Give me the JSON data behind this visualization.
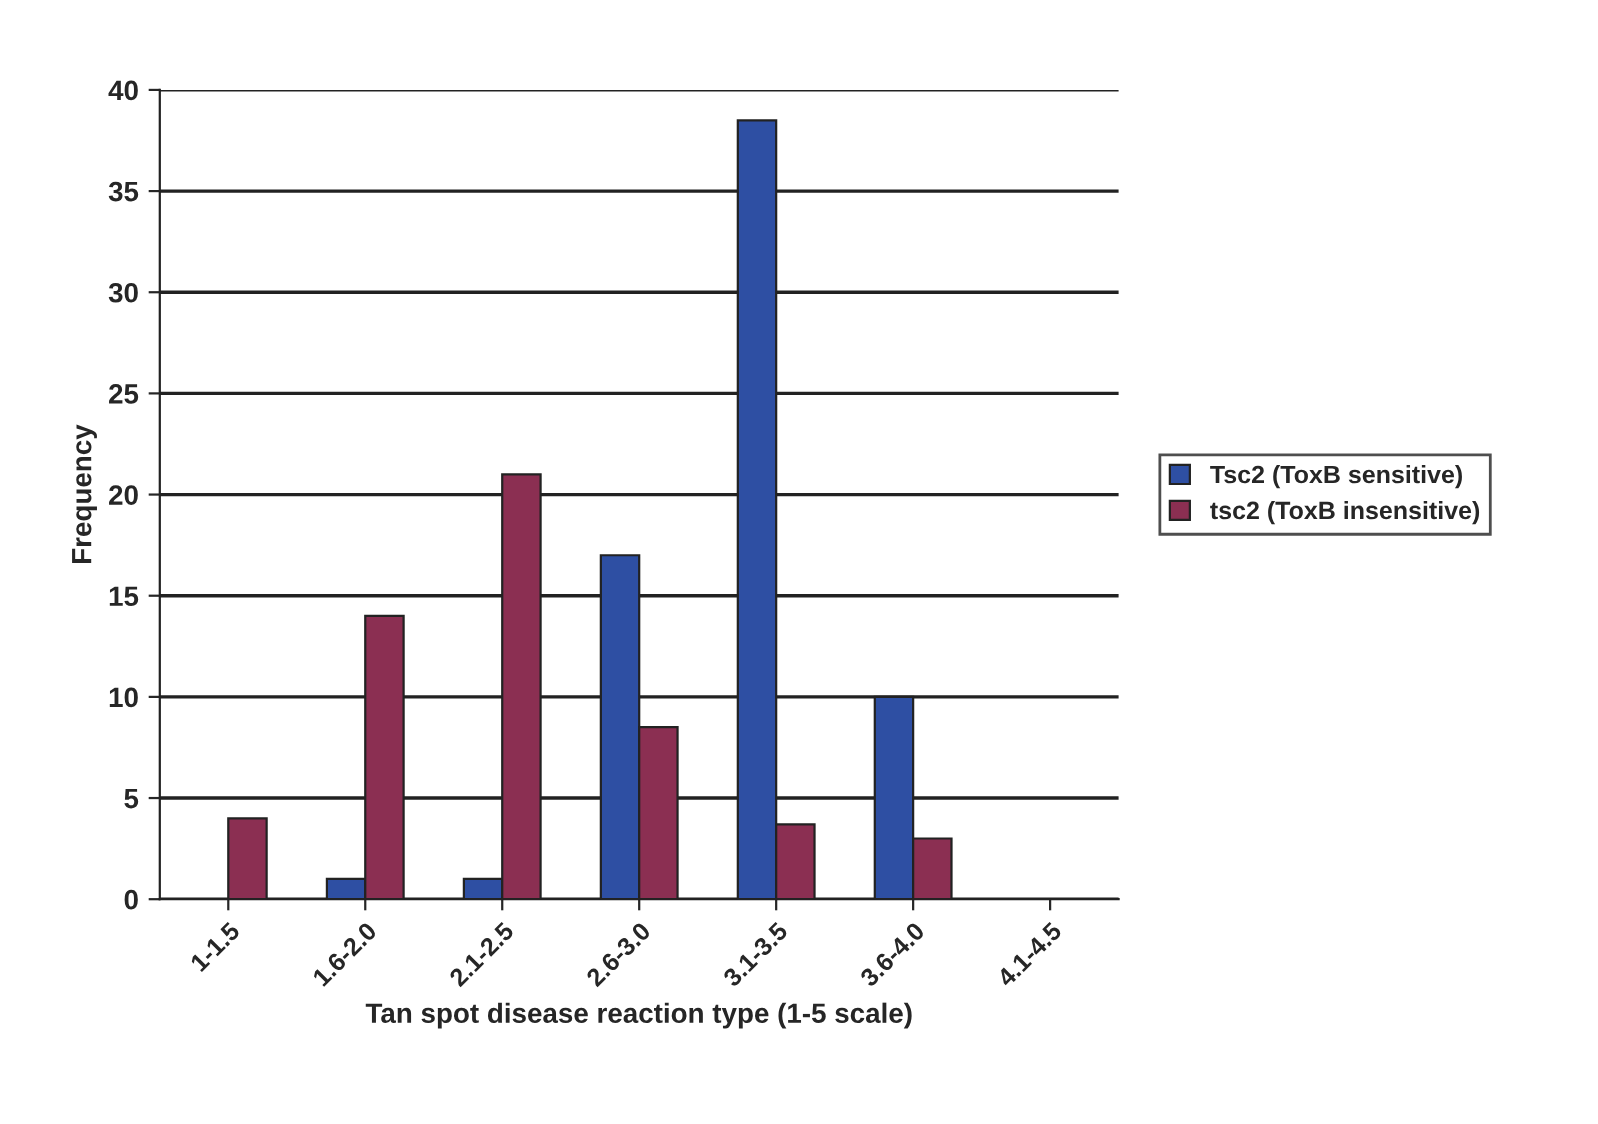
{
  "chart_data": {
    "type": "bar",
    "xlabel": "Tan spot disease reaction type (1-5 scale)",
    "ylabel": "Frequency",
    "categories": [
      "1-1.5",
      "1.6-2.0",
      "2.1-2.5",
      "2.6-3.0",
      "3.1-3.5",
      "3.6-4.0",
      "4.1-4.5"
    ],
    "series": [
      {
        "name": "Tsc2 (ToxB sensitive)",
        "color": "#2e4fa3",
        "values": [
          null,
          1,
          1,
          17,
          38.5,
          10,
          null
        ]
      },
      {
        "name": "tsc2 (ToxB insensitive)",
        "color": "#8b2f52",
        "values": [
          4,
          14,
          21,
          8.5,
          3.7,
          3,
          null
        ]
      }
    ],
    "ylim": [
      0,
      40
    ],
    "yticks": [
      0,
      5,
      10,
      15,
      20,
      25,
      30,
      35,
      40
    ],
    "grid": "y",
    "legend": "right"
  }
}
